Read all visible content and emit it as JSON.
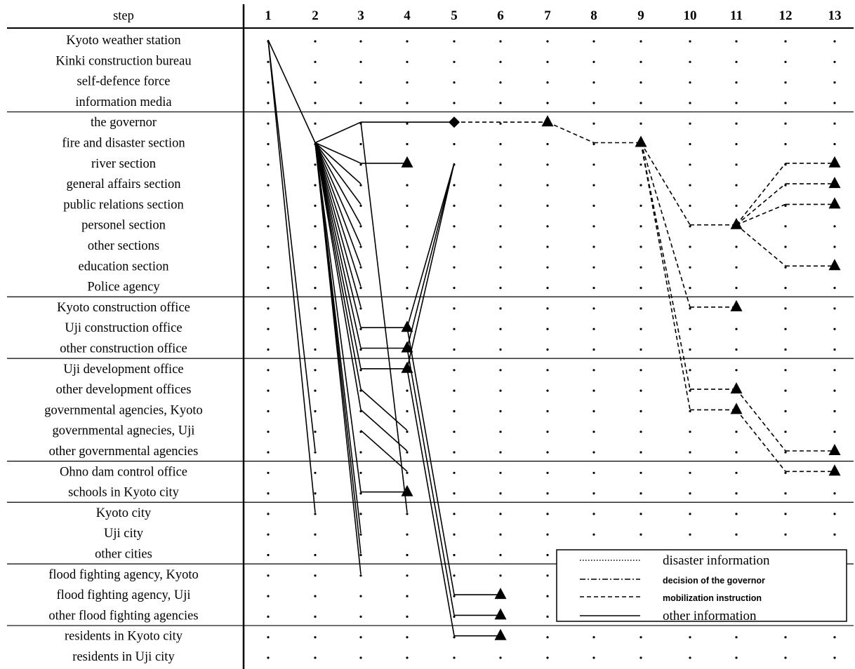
{
  "header": {
    "step_label": "step"
  },
  "steps": [
    "1",
    "2",
    "3",
    "4",
    "5",
    "6",
    "7",
    "8",
    "9",
    "10",
    "11",
    "12",
    "13"
  ],
  "groups": [
    [
      "Kyoto weather station",
      "Kinki construction bureau",
      "self-defence force",
      "information media"
    ],
    [
      "the governor",
      "fire and disaster section",
      "river section",
      "general affairs section",
      "public relations section",
      "personel section",
      "other sections",
      "education section",
      "Police agency"
    ],
    [
      "Kyoto construction office",
      "Uji construction office",
      "other construction office"
    ],
    [
      "Uji development office",
      "other development offices",
      "governmental agencies, Kyoto",
      "governmental agnecies, Uji",
      "other governmental agencies"
    ],
    [
      "Ohno dam control office",
      "schools in Kyoto city"
    ],
    [
      "Kyoto city",
      "Uji city",
      "other cities"
    ],
    [
      "flood fighting agency, Kyoto",
      "flood fighting agency, Uji",
      "other flood fighting agencies"
    ],
    [
      "residents in Kyoto city",
      "residents in Uji city"
    ]
  ],
  "legend": {
    "items": [
      {
        "style": "dotted",
        "label": "disaster information"
      },
      {
        "style": "dashdot",
        "label": "decision of the governor"
      },
      {
        "style": "dashed",
        "label": "mobilization instruction"
      },
      {
        "style": "solid",
        "label": "other information"
      }
    ]
  },
  "links": [
    {
      "from": [
        1,
        0
      ],
      "to": [
        2,
        5
      ],
      "style": "solid"
    },
    {
      "from": [
        1,
        0
      ],
      "to": [
        2,
        20
      ],
      "style": "solid"
    },
    {
      "from": [
        1,
        0
      ],
      "to": [
        2,
        23
      ],
      "style": "solid"
    },
    {
      "from": [
        2,
        5
      ],
      "to": [
        3,
        4
      ],
      "style": "solid"
    },
    {
      "from": [
        3,
        4
      ],
      "to": [
        5,
        4
      ],
      "style": "solid"
    },
    {
      "from": [
        2,
        5
      ],
      "to": [
        3,
        6
      ],
      "style": "solid"
    },
    {
      "from": [
        3,
        6
      ],
      "to": [
        4,
        6
      ],
      "style": "solid",
      "end": "triangle"
    },
    {
      "from": [
        2,
        5
      ],
      "to": [
        3,
        7
      ],
      "style": "solid"
    },
    {
      "from": [
        2,
        5
      ],
      "to": [
        3,
        8
      ],
      "style": "solid"
    },
    {
      "from": [
        2,
        5
      ],
      "to": [
        3,
        9
      ],
      "style": "solid"
    },
    {
      "from": [
        2,
        5
      ],
      "to": [
        3,
        10
      ],
      "style": "solid"
    },
    {
      "from": [
        2,
        5
      ],
      "to": [
        3,
        11
      ],
      "style": "solid"
    },
    {
      "from": [
        2,
        5
      ],
      "to": [
        3,
        12
      ],
      "style": "solid"
    },
    {
      "from": [
        2,
        5
      ],
      "to": [
        3,
        13
      ],
      "style": "solid"
    },
    {
      "from": [
        2,
        5
      ],
      "to": [
        3,
        14
      ],
      "style": "solid"
    },
    {
      "from": [
        2,
        5
      ],
      "to": [
        3,
        15
      ],
      "style": "solid"
    },
    {
      "from": [
        2,
        5
      ],
      "to": [
        3,
        16
      ],
      "style": "solid"
    },
    {
      "from": [
        2,
        5
      ],
      "to": [
        3,
        17
      ],
      "style": "solid"
    },
    {
      "from": [
        2,
        5
      ],
      "to": [
        3,
        18
      ],
      "style": "solid"
    },
    {
      "from": [
        2,
        5
      ],
      "to": [
        3,
        22
      ],
      "style": "solid"
    },
    {
      "from": [
        2,
        5
      ],
      "to": [
        3,
        24
      ],
      "style": "solid"
    },
    {
      "from": [
        2,
        5
      ],
      "to": [
        3,
        25
      ],
      "style": "solid"
    },
    {
      "from": [
        2,
        5
      ],
      "to": [
        3,
        26
      ],
      "style": "solid"
    },
    {
      "from": [
        3,
        4
      ],
      "to": [
        4,
        23
      ],
      "style": "solid"
    },
    {
      "from": [
        3,
        14
      ],
      "to": [
        4,
        14
      ],
      "style": "solid",
      "end": "triangle"
    },
    {
      "from": [
        3,
        15
      ],
      "to": [
        4,
        15
      ],
      "style": "solid",
      "end": "triangle"
    },
    {
      "from": [
        3,
        16
      ],
      "to": [
        4,
        16
      ],
      "style": "solid",
      "end": "triangle"
    },
    {
      "from": [
        3,
        22
      ],
      "to": [
        4,
        22
      ],
      "style": "solid",
      "end": "triangle"
    },
    {
      "from": [
        3,
        17
      ],
      "to": [
        4,
        19
      ],
      "style": "solid"
    },
    {
      "from": [
        3,
        18
      ],
      "to": [
        4,
        20
      ],
      "style": "solid"
    },
    {
      "from": [
        3,
        19
      ],
      "to": [
        4,
        21
      ],
      "style": "solid"
    },
    {
      "from": [
        4,
        14
      ],
      "to": [
        5,
        6
      ],
      "style": "solid"
    },
    {
      "from": [
        4,
        15
      ],
      "to": [
        5,
        6
      ],
      "style": "solid"
    },
    {
      "from": [
        4,
        16
      ],
      "to": [
        5,
        6
      ],
      "style": "solid"
    },
    {
      "from": [
        4,
        14
      ],
      "to": [
        5,
        27
      ],
      "style": "solid"
    },
    {
      "from": [
        4,
        15
      ],
      "to": [
        5,
        28
      ],
      "style": "solid"
    },
    {
      "from": [
        4,
        16
      ],
      "to": [
        5,
        29
      ],
      "style": "solid"
    },
    {
      "from": [
        5,
        27
      ],
      "to": [
        6,
        27
      ],
      "style": "solid",
      "end": "triangle"
    },
    {
      "from": [
        5,
        28
      ],
      "to": [
        6,
        28
      ],
      "style": "solid",
      "end": "triangle"
    },
    {
      "from": [
        5,
        29
      ],
      "to": [
        6,
        29
      ],
      "style": "solid",
      "end": "triangle"
    },
    {
      "from": [
        5,
        4
      ],
      "to": [
        7,
        4
      ],
      "style": "dashed",
      "end": "triangle"
    },
    {
      "from": [
        7,
        4
      ],
      "to": [
        8,
        5
      ],
      "style": "dashed"
    },
    {
      "from": [
        8,
        5
      ],
      "to": [
        9,
        5
      ],
      "style": "dashed",
      "end": "triangle"
    },
    {
      "from": [
        9,
        5
      ],
      "to": [
        10,
        9
      ],
      "style": "dashed"
    },
    {
      "from": [
        10,
        9
      ],
      "to": [
        11,
        9
      ],
      "style": "dashed",
      "end": "triangle"
    },
    {
      "from": [
        9,
        5
      ],
      "to": [
        10,
        13
      ],
      "style": "dashed"
    },
    {
      "from": [
        10,
        13
      ],
      "to": [
        11,
        13
      ],
      "style": "dashed",
      "end": "triangle"
    },
    {
      "from": [
        9,
        5
      ],
      "to": [
        10,
        17
      ],
      "style": "dashed"
    },
    {
      "from": [
        10,
        17
      ],
      "to": [
        11,
        17
      ],
      "style": "dashed",
      "end": "triangle"
    },
    {
      "from": [
        9,
        5
      ],
      "to": [
        10,
        18
      ],
      "style": "dashed"
    },
    {
      "from": [
        10,
        18
      ],
      "to": [
        11,
        18
      ],
      "style": "dashed",
      "end": "triangle"
    },
    {
      "from": [
        11,
        9
      ],
      "to": [
        12,
        6
      ],
      "style": "dashed"
    },
    {
      "from": [
        12,
        6
      ],
      "to": [
        13,
        6
      ],
      "style": "dashed",
      "end": "triangle"
    },
    {
      "from": [
        11,
        9
      ],
      "to": [
        12,
        7
      ],
      "style": "dashed"
    },
    {
      "from": [
        12,
        7
      ],
      "to": [
        13,
        7
      ],
      "style": "dashed",
      "end": "triangle"
    },
    {
      "from": [
        11,
        9
      ],
      "to": [
        12,
        8
      ],
      "style": "dashed"
    },
    {
      "from": [
        12,
        8
      ],
      "to": [
        13,
        8
      ],
      "style": "dashed",
      "end": "triangle"
    },
    {
      "from": [
        11,
        9
      ],
      "to": [
        12,
        11
      ],
      "style": "dashed"
    },
    {
      "from": [
        12,
        11
      ],
      "to": [
        13,
        11
      ],
      "style": "dashed",
      "end": "triangle"
    },
    {
      "from": [
        11,
        17
      ],
      "to": [
        12,
        20
      ],
      "style": "dashed"
    },
    {
      "from": [
        12,
        20
      ],
      "to": [
        13,
        20
      ],
      "style": "dashed",
      "end": "triangle"
    },
    {
      "from": [
        11,
        18
      ],
      "to": [
        12,
        21
      ],
      "style": "dashed"
    },
    {
      "from": [
        12,
        21
      ],
      "to": [
        13,
        21
      ],
      "style": "dashed",
      "end": "triangle"
    }
  ],
  "markers": [
    {
      "at": [
        5,
        4
      ],
      "shape": "diamond"
    }
  ]
}
